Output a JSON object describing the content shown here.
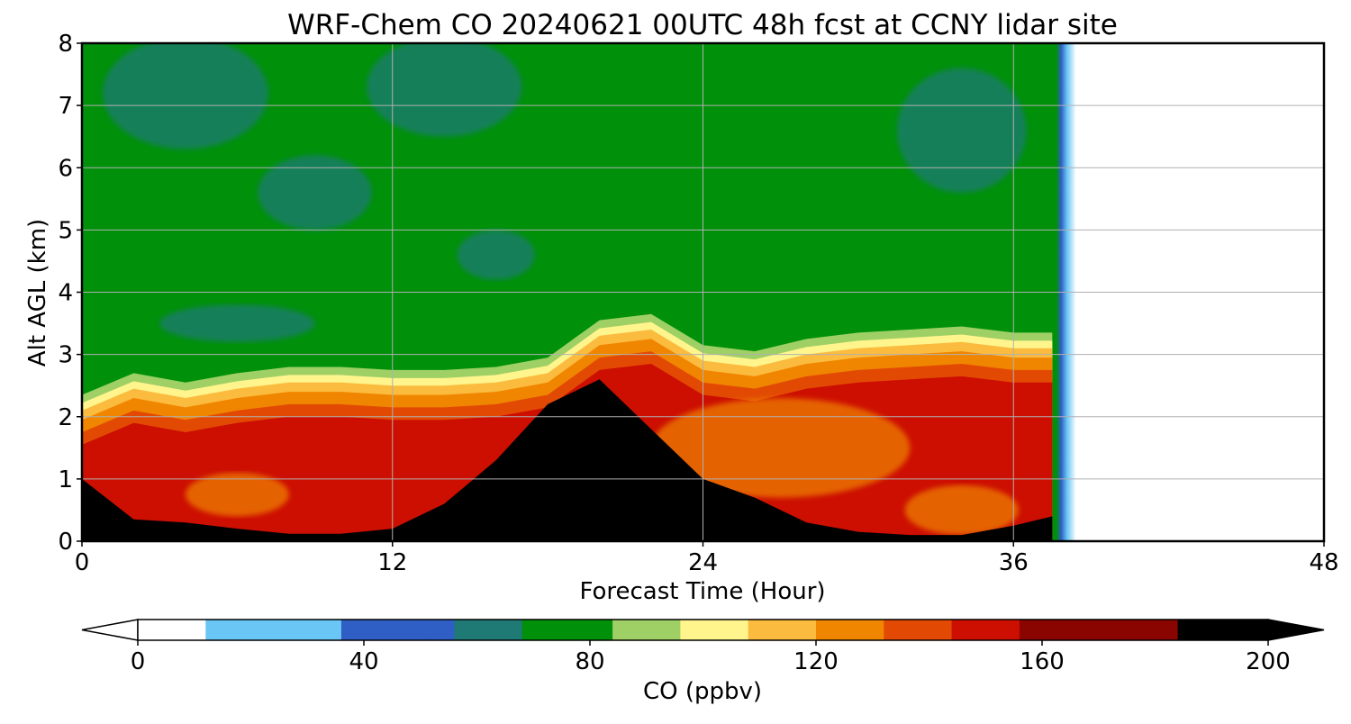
{
  "chart_data": {
    "type": "heatmap",
    "title": "WRF-Chem CO  20240621 00UTC 48h fcst at CCNY lidar site",
    "xlabel": "Forecast Time (Hour)",
    "ylabel": "Alt AGL (km)",
    "xlim": [
      0,
      48
    ],
    "ylim": [
      0,
      8
    ],
    "xticks": [
      "0",
      "12",
      "24",
      "36",
      "48"
    ],
    "yticks": [
      "0",
      "1",
      "2",
      "3",
      "4",
      "5",
      "6",
      "7",
      "8"
    ],
    "grid": true,
    "colorbar": {
      "label": "CO  (ppbv)",
      "range": [
        0,
        200
      ],
      "ticks": [
        "0",
        "40",
        "80",
        "120",
        "160",
        "200"
      ],
      "extend": "both",
      "stops": [
        {
          "v": 0,
          "color": "#ffffff"
        },
        {
          "v": 20,
          "color": "#6ac7f5"
        },
        {
          "v": 50,
          "color": "#2f5fc4"
        },
        {
          "v": 62,
          "color": "#1f7a75"
        },
        {
          "v": 76,
          "color": "#00900a"
        },
        {
          "v": 88,
          "color": "#9ed065"
        },
        {
          "v": 100,
          "color": "#fff58c"
        },
        {
          "v": 112,
          "color": "#fbbb3e"
        },
        {
          "v": 124,
          "color": "#f08600"
        },
        {
          "v": 136,
          "color": "#e24a04"
        },
        {
          "v": 148,
          "color": "#cc0f00"
        },
        {
          "v": 164,
          "color": "#8a0400"
        },
        {
          "v": 200,
          "color": "#000000"
        }
      ]
    },
    "data_end_hour": 38,
    "surface_hours": [
      0,
      2,
      4,
      6,
      8,
      10,
      12,
      14,
      16,
      18,
      20,
      22,
      24,
      26,
      28,
      30,
      32,
      34,
      36,
      37.5
    ],
    "boundary_layer_top_km": [
      2.0,
      2.35,
      2.2,
      2.35,
      2.45,
      2.45,
      2.4,
      2.4,
      2.45,
      2.6,
      3.2,
      3.3,
      2.8,
      2.7,
      2.9,
      3.0,
      3.05,
      3.1,
      3.0,
      3.0
    ],
    "black_layer_top_km": [
      1.0,
      0.35,
      0.3,
      0.2,
      0.12,
      0.12,
      0.2,
      0.6,
      1.3,
      2.2,
      2.6,
      1.8,
      1.0,
      0.7,
      0.3,
      0.15,
      0.1,
      0.1,
      0.25,
      0.4
    ]
  }
}
